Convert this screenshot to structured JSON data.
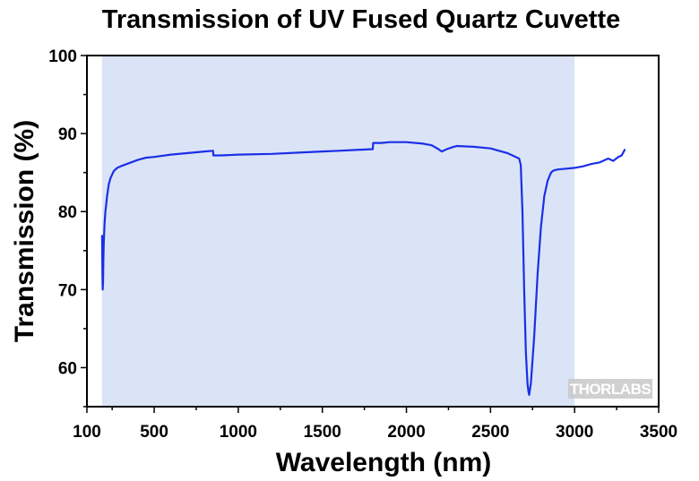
{
  "chart_data": {
    "type": "line",
    "title": "Transmission of UV Fused Quartz Cuvette",
    "xlabel": "Wavelength (nm)",
    "ylabel": "Transmission (%)",
    "xlim": [
      100,
      3500
    ],
    "ylim": [
      55,
      100
    ],
    "x_ticks": [
      100,
      500,
      1000,
      1500,
      2000,
      2500,
      3000,
      3500
    ],
    "y_ticks": [
      60,
      70,
      80,
      90,
      100
    ],
    "grid": false,
    "legend": "none",
    "shaded_region": {
      "x_range": [
        190,
        3000
      ],
      "color": "#dbe4f6"
    },
    "line_color": "#1a2fe8",
    "watermark": "THORLABS",
    "series": [
      {
        "x": [
          190,
          192,
          194,
          196,
          198,
          200,
          205,
          210,
          215,
          220,
          230,
          240,
          260,
          280,
          300,
          350,
          400,
          450,
          500,
          600,
          700,
          800,
          850,
          852,
          860,
          900,
          1000,
          1200,
          1400,
          1500,
          1600,
          1700,
          1800,
          1802,
          1850,
          1900,
          2000,
          2100,
          2150,
          2190,
          2210,
          2240,
          2280,
          2300,
          2400,
          2500,
          2600,
          2650,
          2670,
          2680,
          2690,
          2700,
          2710,
          2720,
          2725,
          2730,
          2740,
          2760,
          2780,
          2800,
          2820,
          2840,
          2860,
          2870,
          2880,
          2900,
          2950,
          3000,
          3050,
          3100,
          3150,
          3200,
          3230,
          3260,
          3280,
          3295,
          3300
        ],
        "y": [
          77,
          72,
          70,
          71,
          74,
          76,
          78.5,
          80,
          81,
          82,
          83.5,
          84.3,
          85.2,
          85.6,
          85.8,
          86.2,
          86.6,
          86.9,
          87.0,
          87.3,
          87.5,
          87.7,
          87.8,
          87.2,
          87.2,
          87.2,
          87.3,
          87.4,
          87.6,
          87.7,
          87.8,
          87.9,
          88.0,
          88.8,
          88.8,
          88.9,
          88.9,
          88.7,
          88.5,
          88.0,
          87.7,
          88.0,
          88.3,
          88.4,
          88.3,
          88.1,
          87.5,
          87.0,
          86.8,
          86.0,
          80.0,
          70.0,
          62.0,
          58.0,
          57.0,
          56.5,
          58.0,
          64.0,
          72.0,
          78.0,
          82.0,
          84.0,
          85.0,
          85.2,
          85.3,
          85.4,
          85.5,
          85.6,
          85.8,
          86.1,
          86.3,
          86.8,
          86.5,
          87.0,
          87.2,
          87.8,
          88.0
        ]
      }
    ]
  }
}
